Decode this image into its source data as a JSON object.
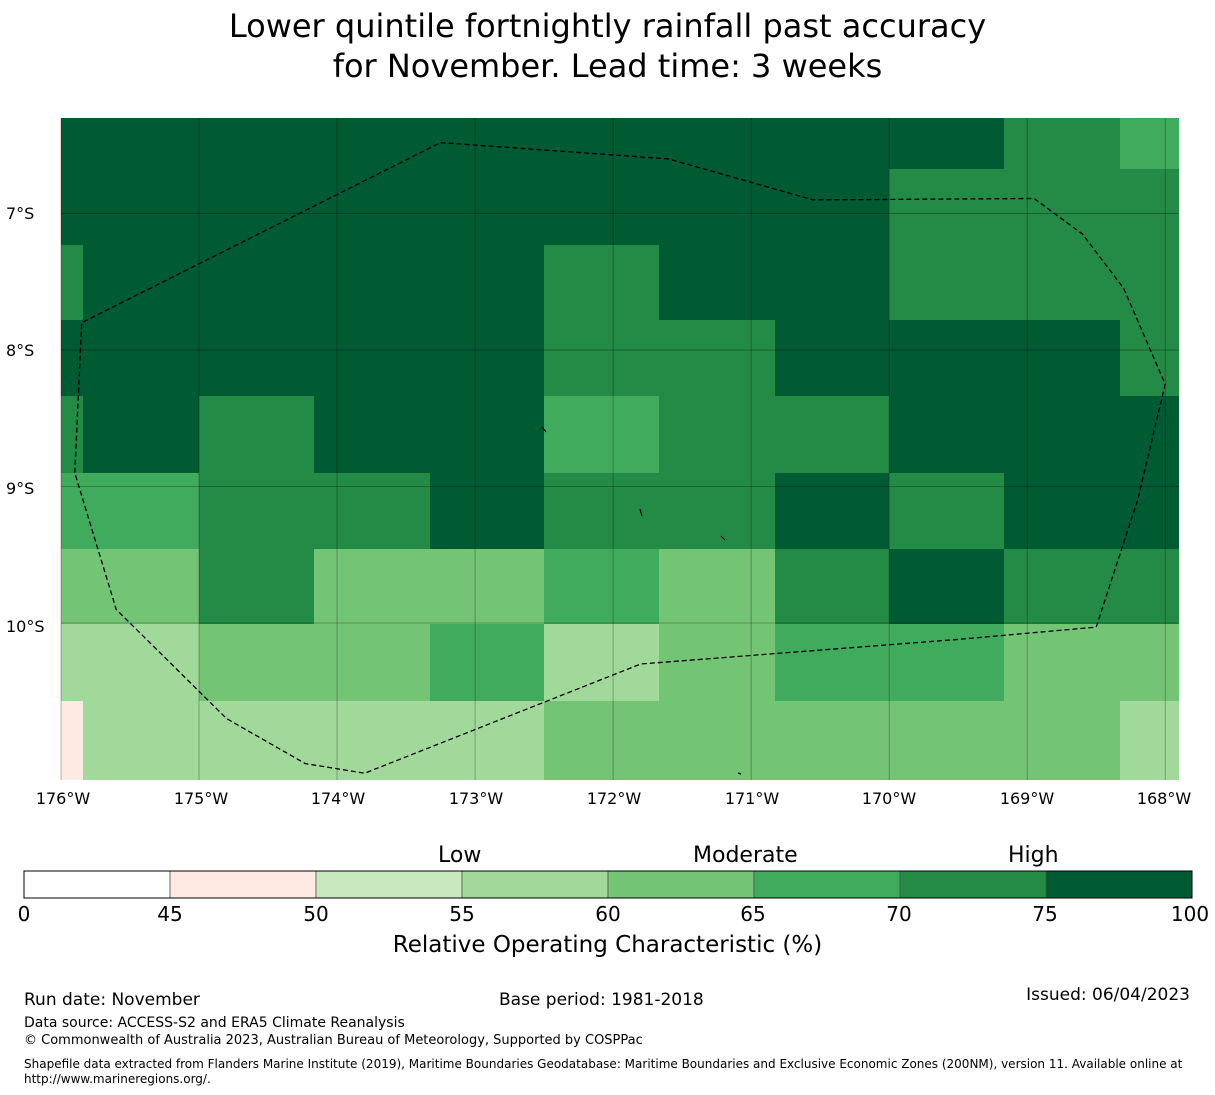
{
  "title_line1": "Lower quintile fortnightly rainfall past accuracy",
  "title_line2": "for November. Lead time: 3 weeks",
  "map": {
    "lon_range": [
      -176,
      -167.9
    ],
    "lat_range": [
      -11.15,
      -6.3
    ],
    "cell_size_deg": 0.833,
    "lon_edges": [
      -176.0,
      -175.84,
      -175.0,
      -174.17,
      -173.33,
      -172.5,
      -171.67,
      -170.83,
      -170.0,
      -169.17,
      -168.33,
      -167.9
    ],
    "lat_edges": [
      -6.3,
      -6.67,
      -7.23,
      -7.78,
      -8.34,
      -8.9,
      -9.46,
      -10.01,
      -10.57,
      -11.15
    ],
    "cells": [
      [
        "75-100",
        "75-100",
        "75-100",
        "75-100",
        "75-100",
        "75-100",
        "75-100",
        "75-100",
        "75-100",
        "70-75",
        "65-70"
      ],
      [
        "75-100",
        "75-100",
        "75-100",
        "75-100",
        "75-100",
        "75-100",
        "75-100",
        "75-100",
        "70-75",
        "70-75",
        "70-75"
      ],
      [
        "70-75",
        "75-100",
        "75-100",
        "75-100",
        "75-100",
        "70-75",
        "75-100",
        "75-100",
        "70-75",
        "70-75",
        "70-75"
      ],
      [
        "75-100",
        "75-100",
        "75-100",
        "75-100",
        "75-100",
        "70-75",
        "70-75",
        "75-100",
        "75-100",
        "75-100",
        "70-75"
      ],
      [
        "70-75",
        "75-100",
        "70-75",
        "75-100",
        "75-100",
        "65-70",
        "70-75",
        "70-75",
        "75-100",
        "75-100",
        "75-100"
      ],
      [
        "65-70",
        "65-70",
        "70-75",
        "70-75",
        "75-100",
        "70-75",
        "70-75",
        "75-100",
        "70-75",
        "75-100",
        "75-100"
      ],
      [
        "60-65",
        "60-65",
        "70-75",
        "60-65",
        "60-65",
        "65-70",
        "60-65",
        "70-75",
        "75-100",
        "70-75",
        "70-75"
      ],
      [
        "55-60",
        "55-60",
        "60-65",
        "60-65",
        "65-70",
        "55-60",
        "60-65",
        "65-70",
        "65-70",
        "60-65",
        "60-65"
      ],
      [
        "45-50",
        "55-60",
        "55-60",
        "55-60",
        "55-60",
        "60-65",
        "60-65",
        "60-65",
        "60-65",
        "60-65",
        "55-60"
      ]
    ],
    "lat_ticks": [
      "7°S",
      "8°S",
      "9°S",
      "10°S"
    ],
    "lat_tick_values": [
      -7,
      -8,
      -9,
      -10
    ],
    "lon_ticks": [
      "176°W",
      "175°W",
      "174°W",
      "173°W",
      "172°W",
      "171°W",
      "170°W",
      "169°W",
      "168°W"
    ],
    "lon_tick_values": [
      -176,
      -175,
      -174,
      -173,
      -172,
      -171,
      -170,
      -169,
      -168
    ],
    "eez_boundary_lonlat": [
      [
        -173.25,
        -6.48
      ],
      [
        -171.6,
        -6.6
      ],
      [
        -170.55,
        -6.9
      ],
      [
        -168.95,
        -6.89
      ],
      [
        -168.6,
        -7.15
      ],
      [
        -168.3,
        -7.55
      ],
      [
        -168.0,
        -8.25
      ],
      [
        -168.2,
        -9.1
      ],
      [
        -168.5,
        -10.03
      ],
      [
        -169.5,
        -10.12
      ],
      [
        -171.8,
        -10.3
      ],
      [
        -173.8,
        -11.1
      ],
      [
        -174.23,
        -11.03
      ],
      [
        -174.8,
        -10.7
      ],
      [
        -175.6,
        -9.9
      ],
      [
        -175.9,
        -8.9
      ],
      [
        -175.85,
        -7.8
      ],
      [
        -173.25,
        -6.48
      ]
    ]
  },
  "colorbar": {
    "categories": [
      "Low",
      "Moderate",
      "High"
    ],
    "ticks": [
      "0",
      "45",
      "50",
      "55",
      "60",
      "65",
      "70",
      "75",
      "100"
    ],
    "bins": [
      {
        "range": "0-45",
        "color": "#ffffff"
      },
      {
        "range": "45-50",
        "color": "#feeae3"
      },
      {
        "range": "50-55",
        "color": "#c7e9c0"
      },
      {
        "range": "55-60",
        "color": "#a1d99b"
      },
      {
        "range": "60-65",
        "color": "#74c476"
      },
      {
        "range": "65-70",
        "color": "#41ab5d"
      },
      {
        "range": "70-75",
        "color": "#238b45"
      },
      {
        "range": "75-100",
        "color": "#005a32"
      }
    ],
    "label": "Relative Operating Characteristic (%)"
  },
  "footer": {
    "run_date": "Run date: November",
    "base_period": "Base period: 1981-2018",
    "issued": "Issued: 06/04/2023",
    "data_source": "Data source: ACCESS-S2 and ERA5 Climate Reanalysis",
    "copyright": "© Commonwealth of Australia 2023, Australian Bureau of Meteorology, Supported by COSPPac",
    "shapefile_line1": "Shapefile data extracted from Flanders Marine Institute (2019), Maritime Boundaries Geodatabase: Maritime Boundaries and Exclusive Economic Zones (200NM), version 11. Available online at",
    "shapefile_line2": "http://www.marineregions.org/."
  }
}
